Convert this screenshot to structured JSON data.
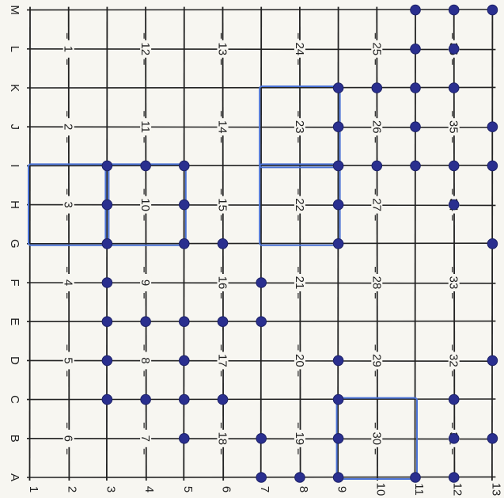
{
  "grid": {
    "row_labels": [
      "A",
      "B",
      "C",
      "D",
      "E",
      "F",
      "G",
      "H",
      "I",
      "J",
      "K",
      "L",
      "M"
    ],
    "col_labels": [
      "1",
      "2",
      "3",
      "4",
      "5",
      "6",
      "7",
      "8",
      "9",
      "10",
      "11",
      "12",
      "13"
    ],
    "segment_numbers": [
      [
        "1",
        "2",
        "3",
        "4",
        "5",
        "6"
      ],
      [
        "12",
        "11",
        "10",
        "9",
        "8",
        "7"
      ],
      [
        "13",
        "14",
        "15",
        "16",
        "17",
        "18"
      ],
      [
        "24",
        "23",
        "22",
        "21",
        "20",
        "19"
      ],
      [
        "25",
        "26",
        "27",
        "28",
        "29",
        "30"
      ],
      [
        "36",
        "35",
        "34",
        "33",
        "32",
        "31"
      ]
    ],
    "colors": {
      "line": "#222222",
      "dot": "#2a2f8f",
      "outline": "#4a72d6",
      "paper": "#f7f6f1"
    },
    "dots": [
      [
        "M",
        11
      ],
      [
        "M",
        12
      ],
      [
        "M",
        13
      ],
      [
        "L",
        11
      ],
      [
        "L",
        12
      ],
      [
        "K",
        9
      ],
      [
        "K",
        10
      ],
      [
        "K",
        11
      ],
      [
        "K",
        12
      ],
      [
        "J",
        9
      ],
      [
        "J",
        11
      ],
      [
        "J",
        13
      ],
      [
        "I",
        3
      ],
      [
        "I",
        4
      ],
      [
        "I",
        5
      ],
      [
        "I",
        9
      ],
      [
        "I",
        10
      ],
      [
        "I",
        11
      ],
      [
        "I",
        12
      ],
      [
        "I",
        13
      ],
      [
        "H",
        3
      ],
      [
        "H",
        5
      ],
      [
        "H",
        9
      ],
      [
        "H",
        12
      ],
      [
        "G",
        3
      ],
      [
        "G",
        5
      ],
      [
        "G",
        6
      ],
      [
        "G",
        9
      ],
      [
        "G",
        13
      ],
      [
        "F",
        3
      ],
      [
        "F",
        7
      ],
      [
        "E",
        3
      ],
      [
        "E",
        4
      ],
      [
        "E",
        5
      ],
      [
        "E",
        6
      ],
      [
        "E",
        7
      ],
      [
        "D",
        3
      ],
      [
        "D",
        5
      ],
      [
        "D",
        9
      ],
      [
        "D",
        13
      ],
      [
        "C",
        3
      ],
      [
        "C",
        4
      ],
      [
        "C",
        5
      ],
      [
        "C",
        6
      ],
      [
        "C",
        9
      ],
      [
        "C",
        12
      ],
      [
        "B",
        5
      ],
      [
        "B",
        7
      ],
      [
        "B",
        9
      ],
      [
        "B",
        12
      ],
      [
        "B",
        13
      ],
      [
        "A",
        7
      ],
      [
        "A",
        8
      ],
      [
        "A",
        9
      ],
      [
        "A",
        11
      ],
      [
        "A",
        12
      ]
    ],
    "outlined_regions": [
      {
        "rows": [
          "G",
          "I"
        ],
        "cols": [
          1,
          3
        ]
      },
      {
        "rows": [
          "G",
          "I"
        ],
        "cols": [
          3,
          5
        ]
      },
      {
        "rows": [
          "G",
          "I"
        ],
        "cols": [
          7,
          9
        ]
      },
      {
        "rows": [
          "I",
          "K"
        ],
        "cols": [
          7,
          9
        ]
      },
      {
        "rows": [
          "A",
          "C"
        ],
        "cols": [
          9,
          11
        ]
      }
    ]
  }
}
